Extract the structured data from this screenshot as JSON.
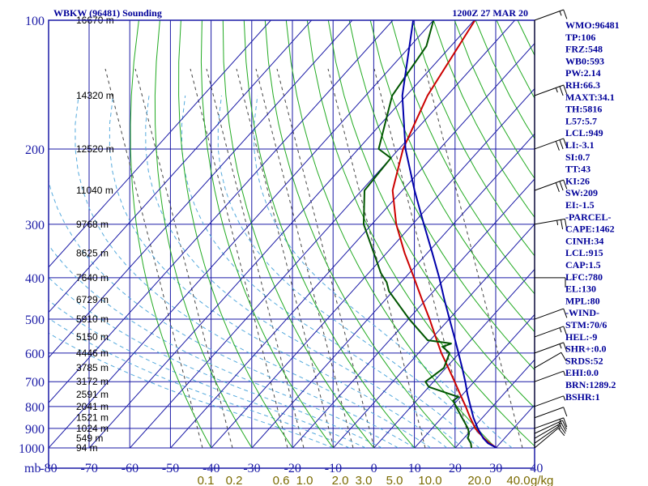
{
  "header": {
    "station": "WBKW (96481) Sounding",
    "time": "1200Z 27 MAR 20"
  },
  "chart_data": {
    "type": "line",
    "title": "WBKW (96481) Sounding",
    "pressure_unit_label": "mb",
    "pressure_levels": [
      100,
      200,
      300,
      400,
      500,
      600,
      700,
      800,
      900,
      1000
    ],
    "pressure_ticks": [
      "100",
      "200",
      "300",
      "400",
      "500",
      "600",
      "700",
      "800",
      "900",
      "1000"
    ],
    "temperature_ticks": [
      -80,
      -70,
      -60,
      -50,
      -40,
      -30,
      -20,
      -10,
      0,
      10,
      20,
      30,
      40
    ],
    "temperature_tick_labels": [
      "-80",
      "-70",
      "-60",
      "-50",
      "-40",
      "-30",
      "-20",
      "-10",
      "0",
      "10",
      "20",
      "30",
      "40"
    ],
    "mixing_ratio_labels": [
      "0.1",
      "0.2",
      "0.6",
      "1.0",
      "2.0",
      "3.0",
      "5.0",
      "10.0",
      "20.0",
      "40.0"
    ],
    "mixing_ratio_unit": "g/kg",
    "heights": [
      {
        "p": 100,
        "label": "16670 m"
      },
      {
        "p": 150,
        "label": "14320 m"
      },
      {
        "p": 200,
        "label": "12520 m"
      },
      {
        "p": 250,
        "label": "11040 m"
      },
      {
        "p": 300,
        "label": "9768 m"
      },
      {
        "p": 350,
        "label": "8625 m"
      },
      {
        "p": 400,
        "label": "7640 m"
      },
      {
        "p": 450,
        "label": "6729 m"
      },
      {
        "p": 500,
        "label": "5910 m"
      },
      {
        "p": 550,
        "label": "5150 m"
      },
      {
        "p": 600,
        "label": "4446 m"
      },
      {
        "p": 650,
        "label": "3785 m"
      },
      {
        "p": 700,
        "label": "3172 m"
      },
      {
        "p": 750,
        "label": "2591 m"
      },
      {
        "p": 800,
        "label": "2041 m"
      },
      {
        "p": 850,
        "label": "1521 m"
      },
      {
        "p": 900,
        "label": "1024 m"
      },
      {
        "p": 950,
        "label": "549 m"
      },
      {
        "p": 1000,
        "label": "94 m"
      }
    ],
    "series": [
      {
        "name": "temperature",
        "color": "#cc0000",
        "points": [
          [
            1000,
            30.2
          ],
          [
            975,
            27.4
          ],
          [
            950,
            25.0
          ],
          [
            925,
            22.8
          ],
          [
            900,
            20.6
          ],
          [
            850,
            17.0
          ],
          [
            800,
            13.4
          ],
          [
            750,
            9.4
          ],
          [
            700,
            5.2
          ],
          [
            650,
            0.6
          ],
          [
            600,
            -4.4
          ],
          [
            550,
            -9.4
          ],
          [
            500,
            -14.8
          ],
          [
            450,
            -21.0
          ],
          [
            400,
            -27.8
          ],
          [
            350,
            -35.6
          ],
          [
            300,
            -44.0
          ],
          [
            250,
            -52.4
          ],
          [
            200,
            -59.0
          ],
          [
            150,
            -64.8
          ],
          [
            100,
            -69.8
          ]
        ]
      },
      {
        "name": "dewpoint",
        "color": "#005500",
        "points": [
          [
            1000,
            24.0
          ],
          [
            975,
            22.8
          ],
          [
            950,
            21.0
          ],
          [
            925,
            20.2
          ],
          [
            900,
            18.8
          ],
          [
            850,
            15.0
          ],
          [
            800,
            11.0
          ],
          [
            775,
            9.0
          ],
          [
            760,
            9.5
          ],
          [
            720,
            0.0
          ],
          [
            700,
            -2.0
          ],
          [
            650,
            -0.5
          ],
          [
            600,
            -2.4
          ],
          [
            580,
            -5.5
          ],
          [
            570,
            -4.0
          ],
          [
            560,
            -10.6
          ],
          [
            500,
            -19.8
          ],
          [
            430,
            -31.0
          ],
          [
            410,
            -33.5
          ],
          [
            390,
            -37.0
          ],
          [
            300,
            -52.0
          ],
          [
            250,
            -59.3
          ],
          [
            210,
            -60.0
          ],
          [
            200,
            -65.0
          ],
          [
            150,
            -73.5
          ],
          [
            115,
            -76.0
          ],
          [
            100,
            -80.0
          ]
        ]
      },
      {
        "name": "parcel",
        "color": "#0000aa",
        "points": [
          [
            1000,
            30.2
          ],
          [
            975,
            27.0
          ],
          [
            950,
            24.8
          ],
          [
            900,
            21.2
          ],
          [
            850,
            17.8
          ],
          [
            800,
            14.6
          ],
          [
            750,
            11.2
          ],
          [
            700,
            7.8
          ],
          [
            650,
            4.0
          ],
          [
            600,
            -0.2
          ],
          [
            550,
            -4.8
          ],
          [
            500,
            -9.9
          ],
          [
            450,
            -15.5
          ],
          [
            400,
            -21.6
          ],
          [
            350,
            -28.8
          ],
          [
            300,
            -37.2
          ],
          [
            250,
            -47.0
          ],
          [
            200,
            -58.4
          ],
          [
            150,
            -71.0
          ],
          [
            100,
            -85.0
          ]
        ]
      }
    ],
    "wind_barbs": [
      {
        "p": 1000,
        "dir": 230,
        "spd": 10
      },
      {
        "p": 975,
        "dir": 235,
        "spd": 10
      },
      {
        "p": 950,
        "dir": 240,
        "spd": 15
      },
      {
        "p": 925,
        "dir": 245,
        "spd": 15
      },
      {
        "p": 900,
        "dir": 250,
        "spd": 15
      },
      {
        "p": 850,
        "dir": 250,
        "spd": 10
      },
      {
        "p": 800,
        "dir": 250,
        "spd": 5
      },
      {
        "p": 700,
        "dir": 250,
        "spd": 5
      },
      {
        "p": 650,
        "dir": 240,
        "spd": 10
      },
      {
        "p": 600,
        "dir": 250,
        "spd": 15
      },
      {
        "p": 550,
        "dir": 250,
        "spd": 15
      },
      {
        "p": 500,
        "dir": 250,
        "spd": 10
      },
      {
        "p": 400,
        "dir": 270,
        "spd": 10
      },
      {
        "p": 300,
        "dir": 260,
        "spd": 25
      },
      {
        "p": 250,
        "dir": 250,
        "spd": 30
      },
      {
        "p": 200,
        "dir": 250,
        "spd": 30
      },
      {
        "p": 150,
        "dir": 250,
        "spd": 25
      },
      {
        "p": 100,
        "dir": 250,
        "spd": 15
      }
    ],
    "grid": true,
    "legend": "none"
  },
  "indices": [
    "WMO:96481",
    "TP:106",
    "FRZ:548",
    "WB0:593",
    "PW:2.14",
    "RH:66.3",
    "MAXT:34.1",
    "TH:5816",
    "L57:5.7",
    "LCL:949",
    "LI:-3.1",
    "SI:0.7",
    "TT:43",
    "KI:26",
    "SW:209",
    "EI:-1.5",
    "-PARCEL-",
    "CAPE:1462",
    "CINH:34",
    "LCL:915",
    "CAP:1.5",
    "LFC:780",
    "EL:130",
    "MPL:80",
    "-WIND-",
    "STM:70/6",
    "HEL:-9",
    "SHR+:0.0",
    "SRDS:52",
    "EHI:0.0",
    "BRN:1289.2",
    "BSHR:1"
  ],
  "colors": {
    "frame": "#1a1aa6",
    "grid": "#1a1aa6",
    "dry_adiabat": "#22aa22",
    "moist_adiabat": "#55aadd",
    "mixing_ratio": "#444444",
    "temperature": "#cc0000",
    "dewpoint": "#005500",
    "parcel": "#0000aa"
  }
}
